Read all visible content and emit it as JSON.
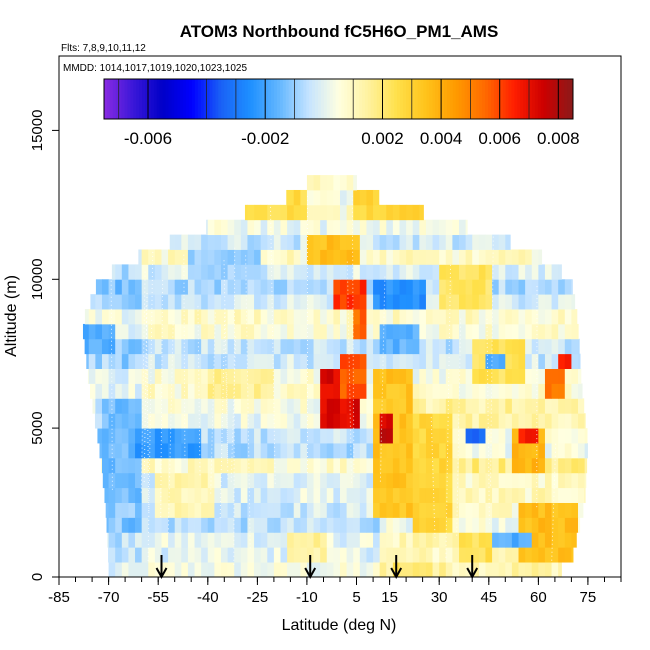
{
  "chart_data": {
    "type": "heatmap",
    "title": "ATOM3 Northbound fC5H6O_PM1_AMS",
    "subtitle_flights": "Flts: 7,8,9,10,11,12",
    "subtitle_dates": "MMDD: 1014,1017,1019,1020,1023,1025",
    "xlabel": "Latitude (deg N)",
    "ylabel": "Altitude (m)",
    "xlim": [
      -85,
      85
    ],
    "ylim": [
      0,
      17500
    ],
    "x_ticks": [
      -85,
      -70,
      -55,
      -40,
      -25,
      -10,
      5,
      15,
      30,
      45,
      60,
      75
    ],
    "x_tick_labels": [
      "-85",
      "-70",
      "-55",
      "-40",
      "-25",
      "-10",
      "5",
      "15",
      "30",
      "45",
      "60",
      "75"
    ],
    "y_ticks": [
      0,
      5000,
      10000,
      15000
    ],
    "y_tick_labels": [
      "0",
      "5000",
      "10000",
      "15000"
    ],
    "colorbar": {
      "min": -0.0075,
      "max": 0.0085,
      "ticks": [
        -0.006,
        -0.002,
        0.002,
        0.004,
        0.006,
        0.008
      ],
      "tick_labels": [
        "-0.006",
        "-0.002",
        "0.002",
        "0.004",
        "0.006",
        "0.008"
      ],
      "stops": [
        {
          "v": -0.0075,
          "c": "#8a2be2"
        },
        {
          "v": -0.0065,
          "c": "#3a17d8"
        },
        {
          "v": -0.0055,
          "c": "#0000c8"
        },
        {
          "v": -0.0045,
          "c": "#0000ff"
        },
        {
          "v": -0.0035,
          "c": "#1a62f5"
        },
        {
          "v": -0.0025,
          "c": "#1e90ff"
        },
        {
          "v": -0.0015,
          "c": "#66b8ff"
        },
        {
          "v": -0.0005,
          "c": "#c6e4ff"
        },
        {
          "v": 0.0005,
          "c": "#ffffe0"
        },
        {
          "v": 0.0015,
          "c": "#fff2a0"
        },
        {
          "v": 0.0025,
          "c": "#ffe04a"
        },
        {
          "v": 0.0035,
          "c": "#ffc21a"
        },
        {
          "v": 0.0045,
          "c": "#ff9a00"
        },
        {
          "v": 0.0055,
          "c": "#ff6a00"
        },
        {
          "v": 0.0065,
          "c": "#ff1e00"
        },
        {
          "v": 0.0075,
          "c": "#cc0000"
        },
        {
          "v": 0.0085,
          "c": "#8b1a1a"
        }
      ]
    },
    "profile_markers_lat": [
      -54,
      -9,
      17,
      40
    ],
    "altitude_bin_m": 500,
    "lat_bin_deg": 2,
    "coverage": [
      {
        "z0": 0,
        "z1": 500,
        "lat0": -70,
        "lat1": 64
      },
      {
        "z0": 500,
        "lat0": -70,
        "lat1": 70
      },
      {
        "z0": 2500,
        "lat0": -71,
        "lat1": 74
      },
      {
        "z0": 4500,
        "lat0": -73,
        "lat1": 75
      },
      {
        "z0": 6500,
        "lat0": -76,
        "lat1": 73
      },
      {
        "z0": 8500,
        "lat0": -78,
        "lat1": 72
      },
      {
        "z0": 10000,
        "lat0": -73,
        "lat1": 70
      },
      {
        "z0": 11000,
        "lat0": -57,
        "lat1": 58
      },
      {
        "z0": 12000,
        "lat0": -35,
        "lat1": 32
      },
      {
        "z0": 13000,
        "lat0": -10,
        "lat1": 5
      }
    ],
    "features": [
      {
        "lat0": -72,
        "lat1": -60,
        "z0": 2500,
        "z1": 6000,
        "v": -0.0014
      },
      {
        "lat0": -62,
        "lat1": -42,
        "z0": 4000,
        "z1": 5000,
        "v": -0.0022
      },
      {
        "lat0": -78,
        "lat1": -68,
        "z0": 7500,
        "z1": 8500,
        "v": -0.0018
      },
      {
        "lat0": -55,
        "lat1": -38,
        "z0": 2000,
        "z1": 3500,
        "v": 0.0012
      },
      {
        "lat0": -40,
        "lat1": -20,
        "z0": 6000,
        "z1": 7000,
        "v": 0.0016
      },
      {
        "lat0": -5,
        "lat1": 5,
        "z0": 5000,
        "z1": 7000,
        "v": 0.0072
      },
      {
        "lat0": 0,
        "lat1": 8,
        "z0": 6000,
        "z1": 7500,
        "v": 0.0058
      },
      {
        "lat0": -2,
        "lat1": 8,
        "z0": 9000,
        "z1": 10000,
        "v": 0.0062
      },
      {
        "lat0": 4,
        "lat1": 8,
        "z0": 8000,
        "z1": 9000,
        "v": 0.0055
      },
      {
        "lat0": 10,
        "lat1": 22,
        "z0": 2000,
        "z1": 7000,
        "v": 0.0034
      },
      {
        "lat0": 12,
        "lat1": 16,
        "z0": 4500,
        "z1": 5500,
        "v": 0.0075
      },
      {
        "lat0": 22,
        "lat1": 34,
        "z0": 1500,
        "z1": 5500,
        "v": 0.0028
      },
      {
        "lat0": 10,
        "lat1": 26,
        "z0": 9000,
        "z1": 10000,
        "v": -0.0025
      },
      {
        "lat0": 12,
        "lat1": 24,
        "z0": 7500,
        "z1": 8500,
        "v": -0.0016
      },
      {
        "lat0": 40,
        "lat1": 55,
        "z0": 6500,
        "z1": 8000,
        "v": 0.0024
      },
      {
        "lat0": 52,
        "lat1": 62,
        "z0": 3500,
        "z1": 5000,
        "v": 0.0038
      },
      {
        "lat0": 55,
        "lat1": 60,
        "z0": 4500,
        "z1": 5000,
        "v": 0.0068
      },
      {
        "lat0": 62,
        "lat1": 68,
        "z0": 6000,
        "z1": 7000,
        "v": 0.0052
      },
      {
        "lat0": 55,
        "lat1": 72,
        "z0": 500,
        "z1": 2500,
        "v": 0.0036
      },
      {
        "lat0": 36,
        "lat1": 46,
        "z0": 500,
        "z1": 1500,
        "v": 0.0024
      },
      {
        "lat0": -15,
        "lat1": -5,
        "z0": 500,
        "z1": 1500,
        "v": 0.0015
      },
      {
        "lat0": 16,
        "lat1": 28,
        "z0": 0,
        "z1": 500,
        "v": 0.0022
      },
      {
        "lat0": 46,
        "lat1": 58,
        "z0": 1000,
        "z1": 1500,
        "v": -0.0018
      },
      {
        "lat0": 38,
        "lat1": 44,
        "z0": 4500,
        "z1": 5000,
        "v": -0.0035
      },
      {
        "lat0": -30,
        "lat1": -10,
        "z0": 12000,
        "z1": 13000,
        "v": 0.0026
      },
      {
        "lat0": 5,
        "lat1": 30,
        "z0": 12000,
        "z1": 13000,
        "v": 0.0028
      },
      {
        "lat0": -10,
        "lat1": 5,
        "z0": 10500,
        "z1": 11500,
        "v": 0.0035
      },
      {
        "lat0": 30,
        "lat1": 45,
        "z0": 9000,
        "z1": 10500,
        "v": 0.0022
      },
      {
        "lat0": -45,
        "lat1": -25,
        "z0": 10000,
        "z1": 11000,
        "v": -0.0009
      },
      {
        "lat0": 44,
        "lat1": 50,
        "z0": 7000,
        "z1": 7500,
        "v": -0.0018
      },
      {
        "lat0": 66,
        "lat1": 70,
        "z0": 7000,
        "z1": 7500,
        "v": 0.0068
      }
    ]
  }
}
